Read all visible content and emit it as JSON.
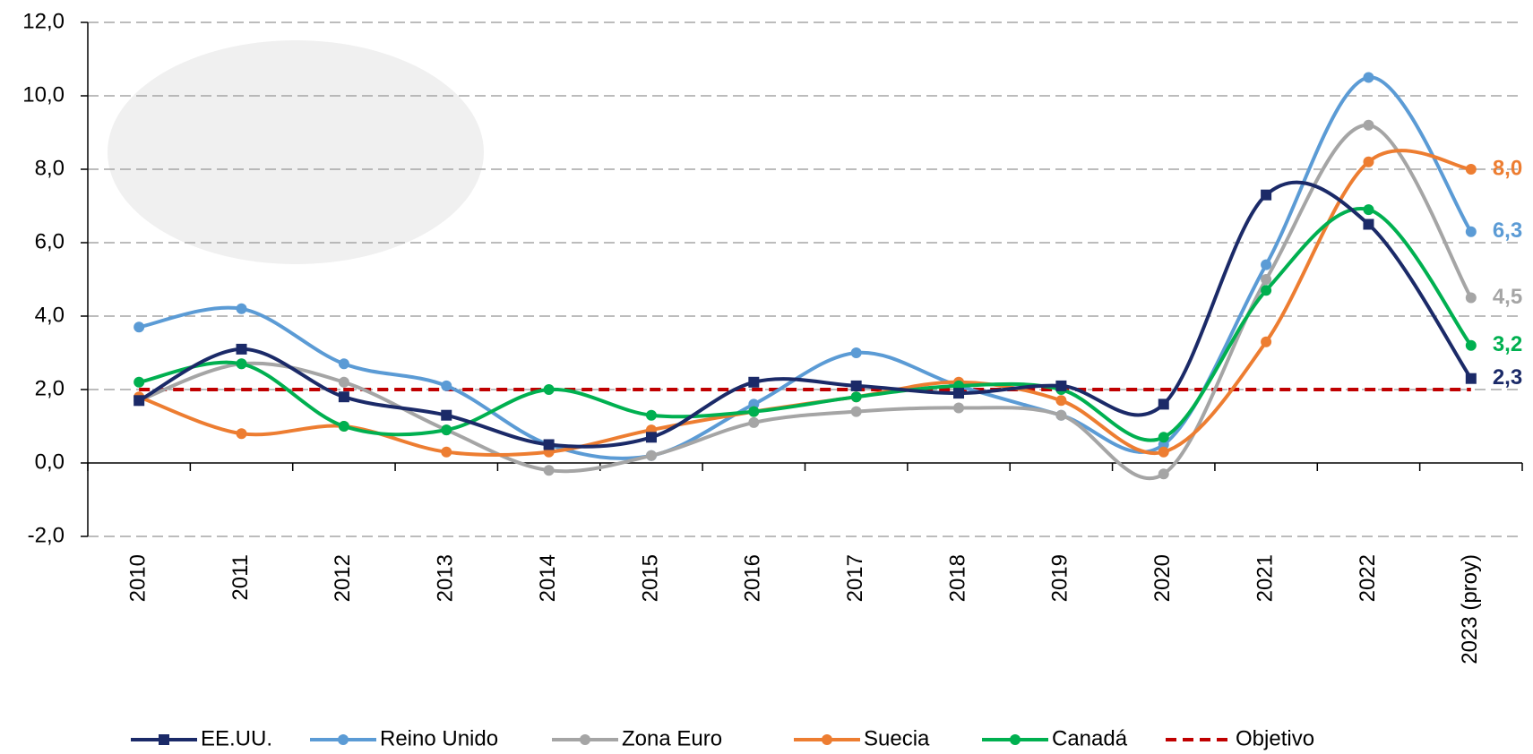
{
  "chart_data": {
    "type": "line",
    "categories": [
      "2010",
      "2011",
      "2012",
      "2013",
      "2014",
      "2015",
      "2016",
      "2017",
      "2018",
      "2019",
      "2020",
      "2021",
      "2022",
      "2023 (proy)"
    ],
    "ylim": [
      -2,
      12
    ],
    "yticks": [
      {
        "value": -2,
        "label": "-2,0"
      },
      {
        "value": 0,
        "label": "0,0"
      },
      {
        "value": 2,
        "label": "2,0"
      },
      {
        "value": 4,
        "label": "4,0"
      },
      {
        "value": 6,
        "label": "6,0"
      },
      {
        "value": 8,
        "label": "8,0"
      },
      {
        "value": 10,
        "label": "10,0"
      },
      {
        "value": 12,
        "label": "12,0"
      }
    ],
    "grid": true,
    "legend": "bottom",
    "series": [
      {
        "name": "EE.UU.",
        "color": "#1b2a68",
        "marker": "square",
        "values": [
          1.7,
          3.1,
          1.8,
          1.3,
          0.5,
          0.7,
          2.2,
          2.1,
          1.9,
          2.1,
          1.6,
          7.3,
          6.5,
          2.3
        ],
        "value_labels": [
          null,
          null,
          null,
          null,
          null,
          null,
          null,
          null,
          null,
          null,
          null,
          null,
          null,
          "2,3"
        ]
      },
      {
        "name": "Reino Unido",
        "color": "#5b9bd5",
        "marker": "circle",
        "values": [
          3.7,
          4.2,
          2.7,
          2.1,
          0.5,
          0.2,
          1.6,
          3.0,
          2.1,
          1.3,
          0.5,
          5.4,
          10.5,
          6.3
        ],
        "value_labels": [
          null,
          null,
          null,
          null,
          null,
          null,
          null,
          null,
          null,
          null,
          null,
          null,
          null,
          "6,3"
        ]
      },
      {
        "name": "Zona Euro",
        "color": "#a5a5a5",
        "marker": "circle",
        "values": [
          1.7,
          2.7,
          2.2,
          0.9,
          -0.2,
          0.2,
          1.1,
          1.4,
          1.5,
          1.3,
          -0.3,
          5.0,
          9.2,
          4.5
        ],
        "value_labels": [
          null,
          null,
          null,
          null,
          null,
          null,
          null,
          null,
          null,
          null,
          null,
          null,
          null,
          "4,5"
        ]
      },
      {
        "name": "Suecia",
        "color": "#ed7d31",
        "marker": "circle",
        "values": [
          1.8,
          0.8,
          1.0,
          0.3,
          0.3,
          0.9,
          1.4,
          1.8,
          2.2,
          1.7,
          0.3,
          3.3,
          8.2,
          8.0
        ],
        "value_labels": [
          null,
          null,
          null,
          null,
          null,
          null,
          null,
          null,
          null,
          null,
          null,
          null,
          null,
          "8,0"
        ]
      },
      {
        "name": "Canadá",
        "color": "#00b050",
        "marker": "circle",
        "values": [
          2.2,
          2.7,
          1.0,
          0.9,
          2.0,
          1.3,
          1.4,
          1.8,
          2.1,
          2.0,
          0.7,
          4.7,
          6.9,
          3.2
        ],
        "value_labels": [
          null,
          null,
          null,
          null,
          null,
          null,
          null,
          null,
          null,
          null,
          null,
          null,
          null,
          "3,2"
        ]
      },
      {
        "name": "Objetivo",
        "color": "#c00000",
        "marker": null,
        "dash": true,
        "values": [
          2,
          2,
          2,
          2,
          2,
          2,
          2,
          2,
          2,
          2,
          2,
          2,
          2,
          2
        ]
      }
    ]
  }
}
